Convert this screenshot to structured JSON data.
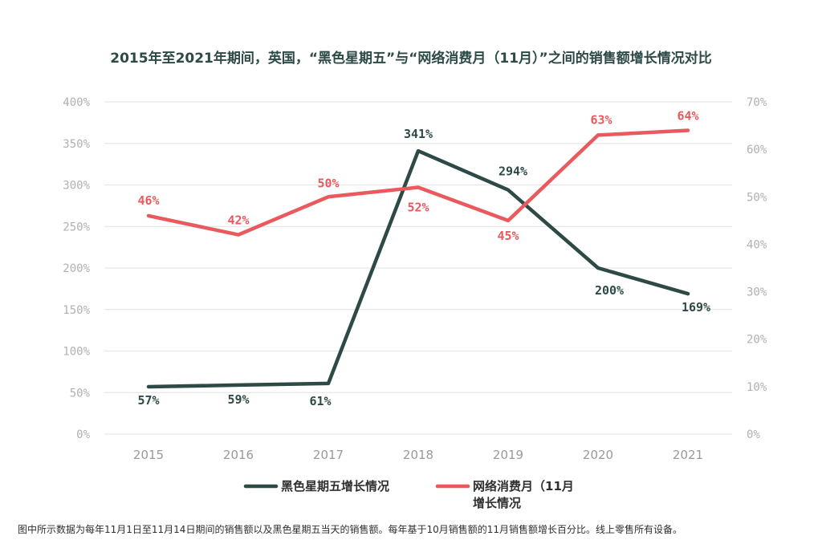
{
  "chart_data": {
    "type": "line",
    "title": "2015年至2021年期间，英国，“黑色星期五”与“网络消费月（11月）”之间的销售额增长情况对比",
    "categories": [
      "2015",
      "2016",
      "2017",
      "2018",
      "2019",
      "2020",
      "2021"
    ],
    "y_left": {
      "range": [
        0,
        400
      ],
      "ticks": [
        0,
        50,
        100,
        150,
        200,
        250,
        300,
        350,
        400
      ],
      "tick_labels": [
        "0%",
        "50%",
        "100%",
        "150%",
        "200%",
        "250%",
        "300%",
        "350%",
        "400%"
      ]
    },
    "y_right": {
      "range": [
        0,
        70
      ],
      "ticks": [
        0,
        10,
        20,
        30,
        40,
        50,
        60,
        70
      ],
      "tick_labels": [
        "0%",
        "10%",
        "20%",
        "30%",
        "40%",
        "50%",
        "60%",
        "70%"
      ]
    },
    "series": [
      {
        "name": "黑色星期五增长情况",
        "axis": "left",
        "color": "#2d4a47",
        "values": [
          57,
          59,
          61,
          341,
          294,
          200,
          169
        ],
        "labels": [
          "57%",
          "59%",
          "61%",
          "341%",
          "294%",
          "200%",
          "169%"
        ]
      },
      {
        "name": "网络消费月（11月增长情况",
        "name_lines": [
          "网络消费月（11月",
          "增长情况"
        ],
        "axis": "right",
        "color": "#e85a5e",
        "values": [
          46,
          42,
          50,
          52,
          45,
          63,
          64
        ],
        "labels": [
          "46%",
          "42%",
          "50%",
          "52%",
          "45%",
          "63%",
          "64%"
        ]
      }
    ],
    "grid": true,
    "legend": "bottom-center",
    "footnote": "图中所示数据为每年11月1日至11月14日期间的销售额以及黑色星期五当天的销售额。每年基于10月销售额的11月销售额增长百分比。线上零售所有设备。"
  }
}
